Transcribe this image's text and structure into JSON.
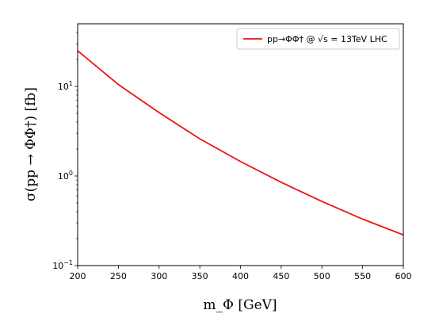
{
  "chart_data": {
    "type": "line",
    "title": "",
    "xlabel": "m_Φ [GeV]",
    "ylabel": "σ(pp → ΦΦ†) [fb]",
    "xscale": "linear",
    "yscale": "log",
    "xlim": [
      200,
      600
    ],
    "ylim": [
      0.1,
      50
    ],
    "xticks": [
      200,
      250,
      300,
      350,
      400,
      450,
      500,
      550,
      600
    ],
    "yticks": [
      {
        "value": 0.1,
        "base": "10",
        "exp": "−1"
      },
      {
        "value": 1,
        "base": "10",
        "exp": "0"
      },
      {
        "value": 10,
        "base": "10",
        "exp": "1"
      }
    ],
    "legend_position": "top-right",
    "grid": false,
    "series": [
      {
        "name": "pp→ΦΦ† @ √s = 13TeV LHC",
        "color": "#ee1111",
        "x": [
          200,
          250,
          300,
          350,
          400,
          450,
          500,
          550,
          600
        ],
        "y": [
          25.0,
          10.5,
          5.1,
          2.6,
          1.45,
          0.85,
          0.52,
          0.33,
          0.22
        ]
      }
    ]
  }
}
